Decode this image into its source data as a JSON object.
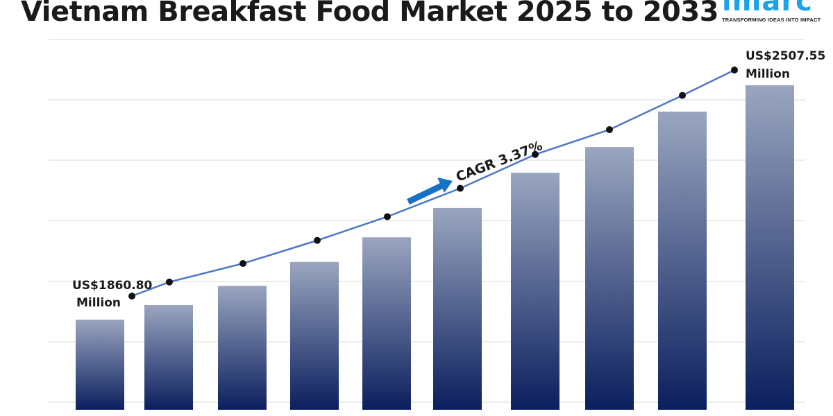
{
  "title": "Vietnam Breakfast Food Market 2025 to 2033",
  "logo": {
    "text": "imarc",
    "tagline": "TRANSFORMING IDEAS INTO IMPACT"
  },
  "chart_data": {
    "type": "bar",
    "title": "Vietnam Breakfast Food Market 2025 to 2033",
    "xlabel": "",
    "ylabel": "",
    "grid": true,
    "values": [
      1860.8,
      1901,
      1954,
      2020,
      2088,
      2169,
      2266,
      2337,
      2435,
      2507.55
    ],
    "overlay_line": true,
    "start_label": {
      "line1": "US$1860.80",
      "line2": "Million"
    },
    "end_label": {
      "line1": "US$2507.55",
      "line2": "Million"
    },
    "annotation": "CAGR 3.37%",
    "colors": {
      "bar_top": "#9aa5bf",
      "bar_bottom": "#0b1f5e",
      "line": "#4a78c8",
      "arrow": "#1672c4",
      "grid": "#d9d9d9"
    }
  }
}
